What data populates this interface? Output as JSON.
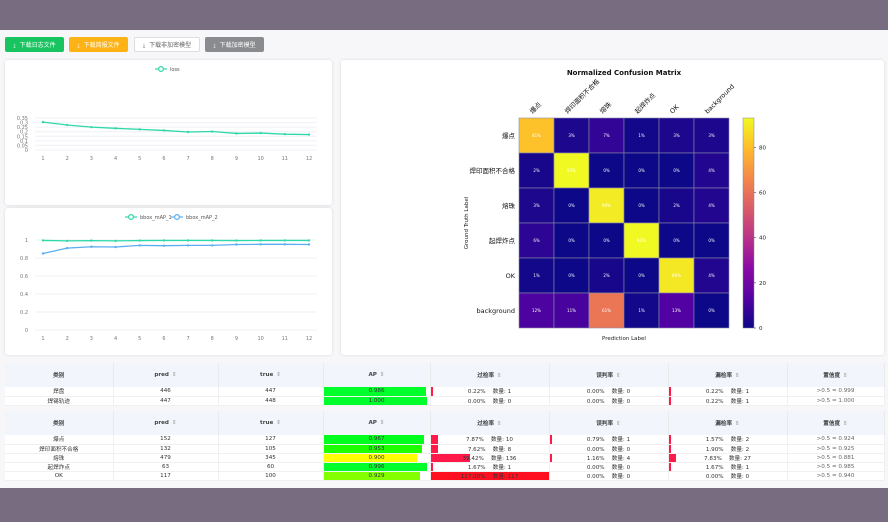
{
  "toolbar": {
    "buttons": [
      {
        "label": "下载日志文件",
        "icon": "download-icon",
        "bg": "#18c45f",
        "fg": "#ffffff"
      },
      {
        "label": "下载简报文件",
        "icon": "download-icon",
        "bg": "#fdb216",
        "fg": "#ffffff"
      },
      {
        "label": "下载非加密模型",
        "icon": "download-icon",
        "bg": "#ffffff",
        "fg": "#666666"
      },
      {
        "label": "下载加密模型",
        "icon": "download-icon",
        "bg": "#8a8b8e",
        "fg": "#ffffff"
      }
    ]
  },
  "chart_data": [
    {
      "type": "line",
      "title": "",
      "x": [
        1,
        2,
        3,
        4,
        5,
        6,
        7,
        8,
        9,
        10,
        11,
        12
      ],
      "ylim": [
        0,
        0.35
      ],
      "yticks": [
        "0",
        "0.05",
        "0.1",
        "0.15",
        "0.2",
        "0.25",
        "0.3",
        "0.35"
      ],
      "grid": true,
      "legend": "top",
      "series": [
        {
          "name": "loss",
          "color": "#2ed8a8",
          "values": [
            0.305,
            0.273,
            0.25,
            0.237,
            0.226,
            0.214,
            0.197,
            0.202,
            0.181,
            0.185,
            0.173,
            0.169
          ]
        }
      ]
    },
    {
      "type": "line",
      "title": "",
      "x": [
        1,
        2,
        3,
        4,
        5,
        6,
        7,
        8,
        9,
        10,
        11,
        12
      ],
      "ylim": [
        0,
        1
      ],
      "yticks": [
        "0",
        "0.2",
        "0.4",
        "0.6",
        "0.8",
        "1"
      ],
      "grid": true,
      "legend": "top",
      "series": [
        {
          "name": "bbox_mAP_1",
          "color": "#2ed8a8",
          "values": [
            0.995,
            0.99,
            0.993,
            0.99,
            0.994,
            0.995,
            0.995,
            0.995,
            0.994,
            0.995,
            0.995,
            0.995
          ]
        },
        {
          "name": "bbox_mAP_2",
          "color": "#5aaef0",
          "values": [
            0.85,
            0.91,
            0.925,
            0.922,
            0.94,
            0.937,
            0.94,
            0.94,
            0.95,
            0.952,
            0.952,
            0.95
          ]
        }
      ]
    },
    {
      "type": "heatmap",
      "title": "Normalized Confusion Matrix",
      "xlabel": "Prediction Label",
      "ylabel": "Ground Truth Label",
      "categories": [
        "爆点",
        "焊印面积不合格",
        "熔珠",
        "起焊炸点",
        "OK",
        "background"
      ],
      "colorbar_ticks": [
        0,
        20,
        40,
        60,
        80
      ],
      "colormap": "plasma",
      "vmin": 0,
      "vmax": 93,
      "values": [
        [
          81,
          3,
          7,
          1,
          3,
          3
        ],
        [
          2,
          93,
          0,
          0,
          0,
          4
        ],
        [
          3,
          0,
          90,
          0,
          2,
          4
        ],
        [
          6,
          0,
          0,
          93,
          0,
          0
        ],
        [
          1,
          0,
          2,
          0,
          89,
          4
        ],
        [
          12,
          11,
          61,
          1,
          13,
          0
        ]
      ]
    }
  ],
  "tables": {
    "headers": [
      "类别",
      "pred",
      "true",
      "AP",
      "过检率",
      "误判率",
      "漏检率",
      "置信度"
    ],
    "count_label": "数量:",
    "groups": [
      [
        {
          "cls": "焊盘",
          "pred": "446",
          "true": "447",
          "ap": 0.986,
          "ap_text": "0.986",
          "over": "0.22%",
          "over_n": "1",
          "over_v": 0.22,
          "mis": "0.00%",
          "mis_n": "0",
          "mis_v": 0,
          "miss": "0.22%",
          "miss_n": "1",
          "miss_v": 0.22,
          "conf": ">0.5 = 0.999"
        },
        {
          "cls": "焊锡轨迹",
          "pred": "447",
          "true": "448",
          "ap": 1.0,
          "ap_text": "1.000",
          "over": "0.00%",
          "over_n": "0",
          "over_v": 0,
          "mis": "0.00%",
          "mis_n": "0",
          "mis_v": 0,
          "miss": "0.22%",
          "miss_n": "1",
          "miss_v": 0.22,
          "conf": ">0.5 = 1.000"
        }
      ],
      [
        {
          "cls": "爆点",
          "pred": "152",
          "true": "127",
          "ap": 0.967,
          "ap_text": "0.967",
          "over": "7.87%",
          "over_n": "10",
          "over_v": 7.87,
          "mis": "0.79%",
          "mis_n": "1",
          "mis_v": 0.79,
          "miss": "1.57%",
          "miss_n": "2",
          "miss_v": 1.57,
          "conf": ">0.5 = 0.924"
        },
        {
          "cls": "焊印面积不合格",
          "pred": "132",
          "true": "105",
          "ap": 0.953,
          "ap_text": "0.953",
          "over": "7.62%",
          "over_n": "8",
          "over_v": 7.62,
          "mis": "0.00%",
          "mis_n": "0",
          "mis_v": 0,
          "miss": "1.90%",
          "miss_n": "2",
          "miss_v": 1.9,
          "conf": ">0.5 = 0.925"
        },
        {
          "cls": "熔珠",
          "pred": "479",
          "true": "345",
          "ap": 0.9,
          "ap_text": "0.900",
          "over": "39.42%",
          "over_n": "136",
          "over_v": 39.42,
          "mis": "1.16%",
          "mis_n": "4",
          "mis_v": 1.16,
          "miss": "7.83%",
          "miss_n": "27",
          "miss_v": 7.83,
          "conf": ">0.5 = 0.881"
        },
        {
          "cls": "起焊炸点",
          "pred": "63",
          "true": "60",
          "ap": 0.996,
          "ap_text": "0.996",
          "over": "1.67%",
          "over_n": "1",
          "over_v": 1.67,
          "mis": "0.00%",
          "mis_n": "0",
          "mis_v": 0,
          "miss": "1.67%",
          "miss_n": "1",
          "miss_v": 1.67,
          "conf": ">0.5 = 0.985"
        },
        {
          "cls": "OK",
          "pred": "117",
          "true": "100",
          "ap": 0.929,
          "ap_text": "0.929",
          "over": "117.00%",
          "over_n": "117",
          "over_v": 117,
          "mis": "0.00%",
          "mis_n": "0",
          "mis_v": 0,
          "miss": "0.00%",
          "miss_n": "0",
          "miss_v": 0,
          "conf": ">0.5 = 0.940"
        }
      ]
    ]
  }
}
